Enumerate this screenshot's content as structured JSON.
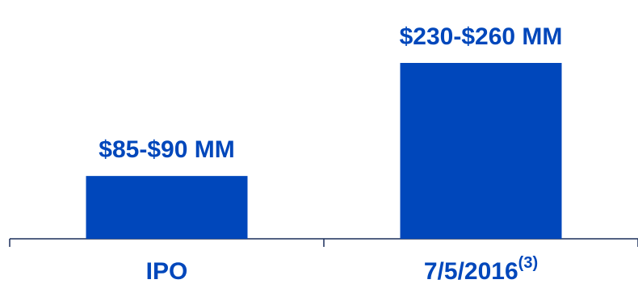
{
  "chart_data": {
    "type": "bar",
    "categories": [
      "IPO",
      "7/5/2016"
    ],
    "category_superscripts": [
      "",
      "(3)"
    ],
    "series": [
      {
        "values": [
          87.5,
          245
        ],
        "labels": [
          "$85-$90 MM",
          "$230-$260 MM"
        ]
      }
    ],
    "title": "",
    "xlabel": "",
    "ylabel": "",
    "ylim": [
      0,
      280
    ],
    "grid": false,
    "legend": "none",
    "colors": {
      "bar": "#0047BB",
      "text": "#0047BB",
      "axis": "#1a2e5a"
    }
  }
}
